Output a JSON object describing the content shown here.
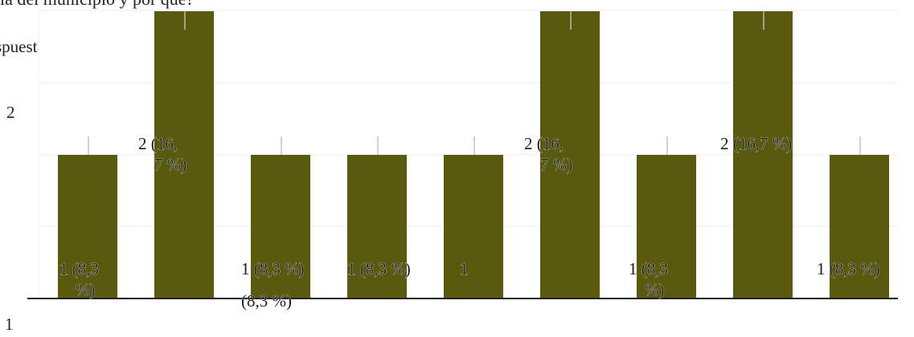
{
  "title": "ia del municipio y por qué?",
  "y_axis": {
    "label": "spuestas",
    "tick_2": "2",
    "tick_1": "1"
  },
  "chart_data": {
    "type": "bar",
    "title": "ia del municipio y por qué?",
    "ylabel": "spuestas",
    "ylim": [
      0,
      2
    ],
    "grid": true,
    "bar_color": "#5a5a0f",
    "values": [
      1,
      2,
      1,
      1,
      1,
      2,
      1,
      2,
      1
    ],
    "data_labels": [
      "1 (8,3 %)",
      "2 (16,7 %)",
      "1 (8,3 %)",
      "1 (8,3 %)",
      "1",
      "2 (16,7 %)",
      "1 (8,3 %)",
      "2 (16,7 %)",
      "1 (8,3 %)"
    ],
    "extra_annotations": [
      "(8,3 %)"
    ]
  }
}
